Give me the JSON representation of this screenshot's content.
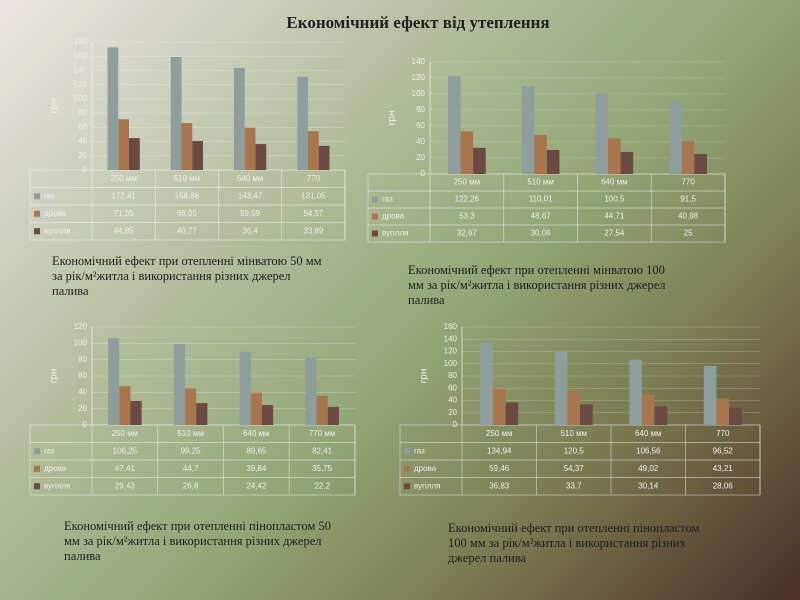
{
  "title": "Економічний ефект від утеплення",
  "chart_data": [
    {
      "type": "bar",
      "caption": "Економічний ефект при отепленні мінватою 50 мм за рік/м²житла і використання різних джерел палива",
      "y_label": "грн",
      "categories": [
        "250 мм",
        "510 мм",
        "640 мм",
        "770"
      ],
      "ylim": [
        0,
        180
      ],
      "yticks": [
        0,
        20,
        40,
        60,
        80,
        100,
        120,
        140,
        160,
        180
      ],
      "grid": true,
      "series": [
        {
          "name": "газ",
          "color": "#8e9e9c",
          "values": [
            172.41,
            158.88,
            143.47,
            131.05
          ],
          "value_labels": [
            "172,41",
            "158,88",
            "143,47",
            "131,05"
          ]
        },
        {
          "name": "дрова",
          "color": "#a8764e",
          "values": [
            71.35,
            66.05,
            59.59,
            54.57
          ],
          "value_labels": [
            "71,35",
            "66,05",
            "59,59",
            "54,57"
          ]
        },
        {
          "name": "вугілля",
          "color": "#6a4a42",
          "values": [
            44.85,
            40.77,
            36.4,
            33.89
          ],
          "value_labels": [
            "44,85",
            "40,77",
            "36,4",
            "33,89"
          ]
        }
      ]
    },
    {
      "type": "bar",
      "caption": "Економічний ефект при отепленні мінватою 100 мм за рік/м²житла і використання різних джерел палива",
      "y_label": "грн",
      "categories": [
        "250 мм",
        "510 мм",
        "640 мм",
        "770"
      ],
      "ylim": [
        0,
        140
      ],
      "yticks": [
        0,
        20,
        40,
        60,
        80,
        100,
        120,
        140
      ],
      "grid": true,
      "series": [
        {
          "name": "газ",
          "color": "#8e9e9c",
          "values": [
            122.26,
            110.01,
            100.5,
            91.5
          ],
          "value_labels": [
            "122,26",
            "110,01",
            "100,5",
            "91,5"
          ]
        },
        {
          "name": "дрова",
          "color": "#a8764e",
          "values": [
            53.3,
            48.67,
            44.71,
            40.98
          ],
          "value_labels": [
            "53,3",
            "48,67",
            "44,71",
            "40,98"
          ]
        },
        {
          "name": "вугілля",
          "color": "#6a4a42",
          "values": [
            32.67,
            30.06,
            27.54,
            25
          ],
          "value_labels": [
            "32,67",
            "30,06",
            "27,54",
            "25"
          ]
        }
      ]
    },
    {
      "type": "bar",
      "caption": "Економічний ефект при отепленні пінопластом 50 мм за рік/м²житла і використання різних джерел палива",
      "y_label": "грн",
      "categories": [
        "250 мм",
        "510 мм",
        "640 мм",
        "770 мм"
      ],
      "ylim": [
        0,
        120
      ],
      "yticks": [
        0,
        20,
        40,
        60,
        80,
        100,
        120
      ],
      "grid": true,
      "series": [
        {
          "name": "газ",
          "color": "#8e9e9c",
          "values": [
            106.25,
            99.25,
            89.65,
            82.41
          ],
          "value_labels": [
            "106,25",
            "99,25",
            "89,65",
            "82,41"
          ]
        },
        {
          "name": "дрова",
          "color": "#a8764e",
          "values": [
            47.41,
            44.7,
            39.84,
            35.75
          ],
          "value_labels": [
            "47,41",
            "44,7",
            "39,84",
            "35,75"
          ]
        },
        {
          "name": "вугілля",
          "color": "#6a4a42",
          "values": [
            29.43,
            26.8,
            24.42,
            22.2
          ],
          "value_labels": [
            "29,43",
            "26,8",
            "24,42",
            "22,2"
          ]
        }
      ]
    },
    {
      "type": "bar",
      "caption": "Економічний ефект при отепленні пінопластом 100 мм  за рік/м²житла і використання різних джерел палива",
      "y_label": "грн",
      "categories": [
        "250 мм",
        "510 мм",
        "640 мм",
        "770"
      ],
      "ylim": [
        0,
        160
      ],
      "yticks": [
        0,
        20,
        40,
        60,
        80,
        100,
        120,
        140,
        160
      ],
      "grid": true,
      "series": [
        {
          "name": "газ",
          "color": "#8e9e9c",
          "values": [
            134.94,
            120.5,
            106.56,
            96.52
          ],
          "value_labels": [
            "134,94",
            "120,5",
            "106,56",
            "96,52"
          ]
        },
        {
          "name": "дрова",
          "color": "#a8764e",
          "values": [
            59.46,
            54.37,
            49.02,
            43.21
          ],
          "value_labels": [
            "59,46",
            "54,37",
            "49,02",
            "43,21"
          ]
        },
        {
          "name": "вугілля",
          "color": "#6a4a42",
          "values": [
            36.83,
            33.7,
            30.14,
            28.06
          ],
          "value_labels": [
            "36,83",
            "33,7",
            "30,14",
            "28,06"
          ]
        }
      ]
    }
  ]
}
